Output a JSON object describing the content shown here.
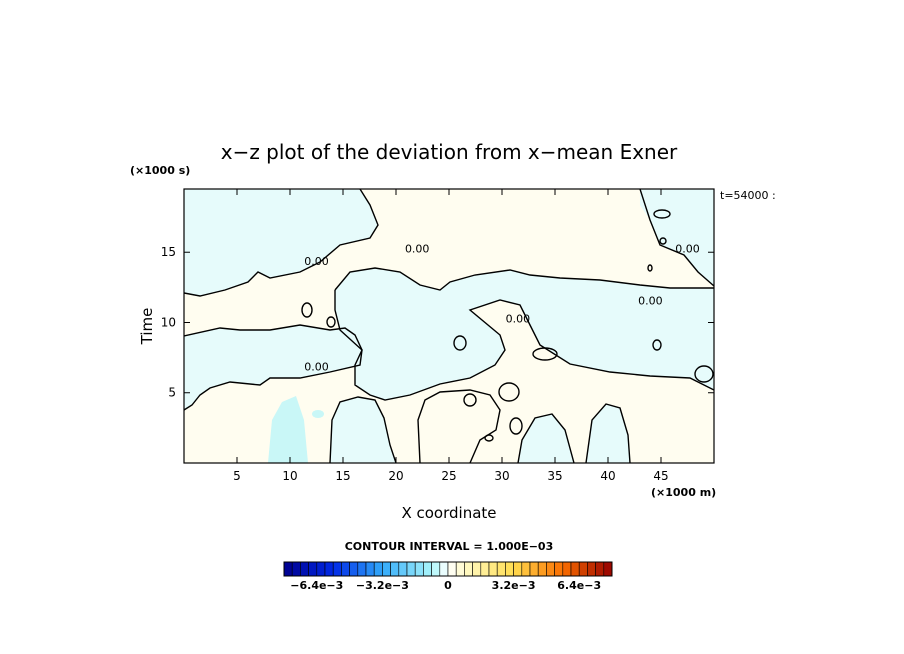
{
  "chart_data": {
    "type": "heatmap",
    "title": "x−z plot of the deviation from x−mean Exner",
    "xlabel": "X coordinate",
    "ylabel": "Time",
    "x_unit_label": "(×1000 m)",
    "y_unit_label": "(×1000 s)",
    "time_label": "t=54000 :",
    "xlim": [
      0,
      50
    ],
    "ylim": [
      0,
      19.5
    ],
    "x_ticks": [
      5,
      10,
      15,
      20,
      25,
      30,
      35,
      40,
      45
    ],
    "y_ticks": [
      5,
      10,
      15
    ],
    "contour_labels": [
      {
        "text": "0.00",
        "x": 22,
        "y": 15.2
      },
      {
        "text": "0.00",
        "x": 12.5,
        "y": 14.3
      },
      {
        "text": "0.00",
        "x": 12.5,
        "y": 6.8
      },
      {
        "text": "0.00",
        "x": 31.5,
        "y": 10.2
      },
      {
        "text": "0.00",
        "x": 44,
        "y": 11.5
      },
      {
        "text": "0.00",
        "x": 47.5,
        "y": 15.2
      }
    ],
    "contour_interval_label": "CONTOUR INTERVAL = 1.000E−03",
    "colorbar": {
      "range": [
        -0.008,
        0.008
      ],
      "tick_labels": [
        "−6.4e−3",
        "−3.2e−3",
        "0",
        "3.2e−3",
        "6.4e−3"
      ],
      "tick_values": [
        -0.0064,
        -0.0032,
        0,
        0.0032,
        0.0064
      ]
    }
  }
}
